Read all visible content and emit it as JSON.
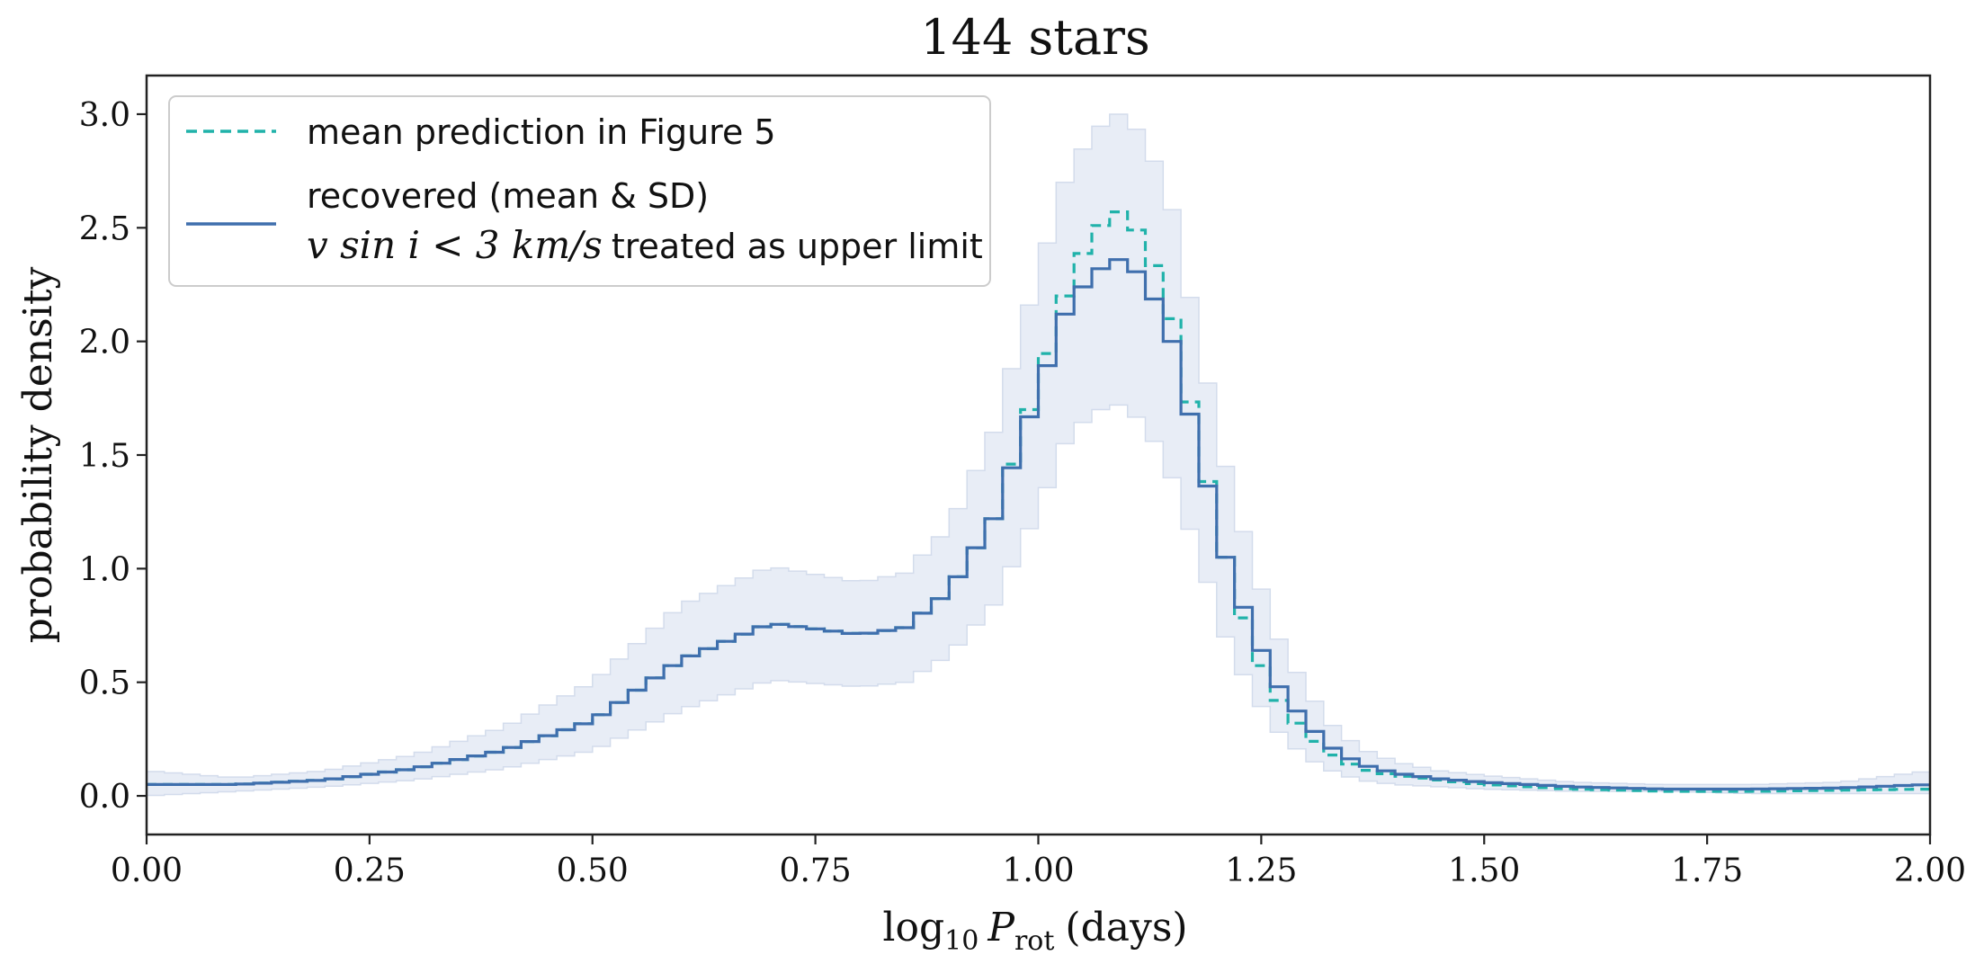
{
  "chart_data": {
    "type": "line",
    "title": "144 stars",
    "xlabel": "log10 Prot (days)",
    "xlabel_parts": {
      "base": "log",
      "sub": "10",
      "var": "P",
      "var_sub": "rot",
      "unit": "(days)"
    },
    "ylabel": "probability density",
    "xlim": [
      0.0,
      2.0
    ],
    "ylim": [
      -0.17,
      3.17
    ],
    "x_ticks": [
      0.0,
      0.25,
      0.5,
      0.75,
      1.0,
      1.25,
      1.5,
      1.75,
      2.0
    ],
    "x_tick_labels": [
      "0.00",
      "0.25",
      "0.50",
      "0.75",
      "1.00",
      "1.25",
      "1.50",
      "1.75",
      "2.00"
    ],
    "y_ticks": [
      0.0,
      0.5,
      1.0,
      1.5,
      2.0,
      2.5,
      3.0
    ],
    "y_tick_labels": [
      "0.0",
      "0.5",
      "1.0",
      "1.5",
      "2.0",
      "2.5",
      "3.0"
    ],
    "grid": false,
    "legend": {
      "placement": "top-left",
      "entries": [
        {
          "label": "mean prediction in Figure 5",
          "style": "dashed",
          "color": "#20b2aa"
        },
        {
          "label_line1": "recovered (mean & SD)",
          "label_math": "v sin i < 3 km/s",
          "label_rest": "treated as upper limit",
          "style": "solid",
          "color": "#3f6fad"
        }
      ]
    },
    "bin_width": 0.02,
    "series": [
      {
        "name": "mean prediction in Figure 5",
        "style": "dashed",
        "color": "#20b2aa",
        "knots_x": [
          0.0,
          0.1,
          0.2,
          0.3,
          0.4,
          0.5,
          0.6,
          0.7,
          0.8,
          0.85,
          0.9,
          0.95,
          1.0,
          1.03,
          1.06,
          1.09,
          1.12,
          1.15,
          1.18,
          1.21,
          1.24,
          1.27,
          1.3,
          1.33,
          1.36,
          1.4,
          1.45,
          1.5,
          1.6,
          1.7,
          1.8,
          1.9,
          2.0
        ],
        "knots_y": [
          0.05,
          0.05,
          0.07,
          0.12,
          0.2,
          0.33,
          0.6,
          0.76,
          0.71,
          0.74,
          0.9,
          1.22,
          1.82,
          2.2,
          2.48,
          2.57,
          2.45,
          2.1,
          1.55,
          1.05,
          0.65,
          0.42,
          0.27,
          0.18,
          0.12,
          0.09,
          0.07,
          0.05,
          0.03,
          0.02,
          0.02,
          0.025,
          0.03
        ]
      },
      {
        "name": "recovered (mean & SD)",
        "style": "solid",
        "color": "#3f6fad",
        "knots_x": [
          0.0,
          0.1,
          0.2,
          0.3,
          0.4,
          0.5,
          0.6,
          0.7,
          0.8,
          0.85,
          0.9,
          0.95,
          1.0,
          1.03,
          1.06,
          1.09,
          1.12,
          1.15,
          1.18,
          1.21,
          1.24,
          1.27,
          1.3,
          1.33,
          1.36,
          1.4,
          1.45,
          1.5,
          1.6,
          1.7,
          1.8,
          1.9,
          2.0
        ],
        "knots_y": [
          0.05,
          0.05,
          0.07,
          0.12,
          0.2,
          0.33,
          0.6,
          0.76,
          0.71,
          0.74,
          0.9,
          1.22,
          1.78,
          2.12,
          2.3,
          2.36,
          2.28,
          2.0,
          1.52,
          1.05,
          0.72,
          0.48,
          0.32,
          0.21,
          0.14,
          0.1,
          0.075,
          0.06,
          0.04,
          0.03,
          0.03,
          0.035,
          0.05
        ]
      }
    ],
    "band": {
      "name": "recovered SD",
      "color": "#e8edf6",
      "edge_color": "#d3dcec",
      "knots_x": [
        0.0,
        0.1,
        0.2,
        0.3,
        0.4,
        0.5,
        0.6,
        0.7,
        0.8,
        0.85,
        0.9,
        0.95,
        1.0,
        1.03,
        1.06,
        1.09,
        1.12,
        1.15,
        1.18,
        1.21,
        1.24,
        1.27,
        1.3,
        1.33,
        1.36,
        1.4,
        1.45,
        1.5,
        1.6,
        1.7,
        1.8,
        1.9,
        2.0
      ],
      "upper": [
        0.11,
        0.08,
        0.11,
        0.18,
        0.3,
        0.5,
        0.84,
        1.01,
        0.94,
        0.98,
        1.18,
        1.6,
        2.3,
        2.7,
        2.92,
        3.0,
        2.9,
        2.58,
        2.0,
        1.45,
        1.02,
        0.69,
        0.47,
        0.31,
        0.21,
        0.15,
        0.11,
        0.09,
        0.06,
        0.05,
        0.05,
        0.06,
        0.11
      ],
      "lower": [
        0.0,
        0.02,
        0.04,
        0.07,
        0.12,
        0.2,
        0.38,
        0.51,
        0.48,
        0.5,
        0.62,
        0.84,
        1.26,
        1.55,
        1.69,
        1.72,
        1.64,
        1.4,
        1.06,
        0.7,
        0.45,
        0.28,
        0.17,
        0.11,
        0.07,
        0.05,
        0.04,
        0.03,
        0.02,
        0.02,
        0.01,
        0.01,
        0.01
      ]
    }
  }
}
